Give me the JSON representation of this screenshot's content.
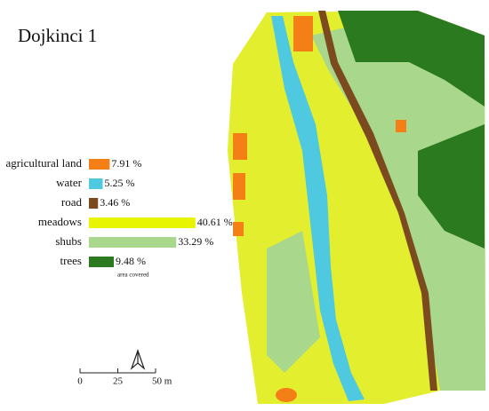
{
  "title": "Dojkinci 1",
  "legend": {
    "categories": [
      "agricultural land",
      "water",
      "road",
      "meadows",
      "shubs",
      "trees"
    ],
    "values": [
      7.91,
      5.25,
      3.46,
      40.61,
      33.29,
      9.48
    ],
    "value_labels": [
      "7.91 %",
      "5.25 %",
      "3.46 %",
      "40.61 %",
      "33.29 %",
      "9.48 %"
    ],
    "colors": [
      "#f57f17",
      "#4ec9e0",
      "#7b4a1e",
      "#e8f500",
      "#a9d88c",
      "#2b7a1f"
    ],
    "note": "area covered"
  },
  "scale_bar": {
    "ticks": [
      {
        "value": 0,
        "label": "0"
      },
      {
        "value": 25,
        "label": "25"
      },
      {
        "value": 50,
        "label": "50 m"
      }
    ]
  }
}
